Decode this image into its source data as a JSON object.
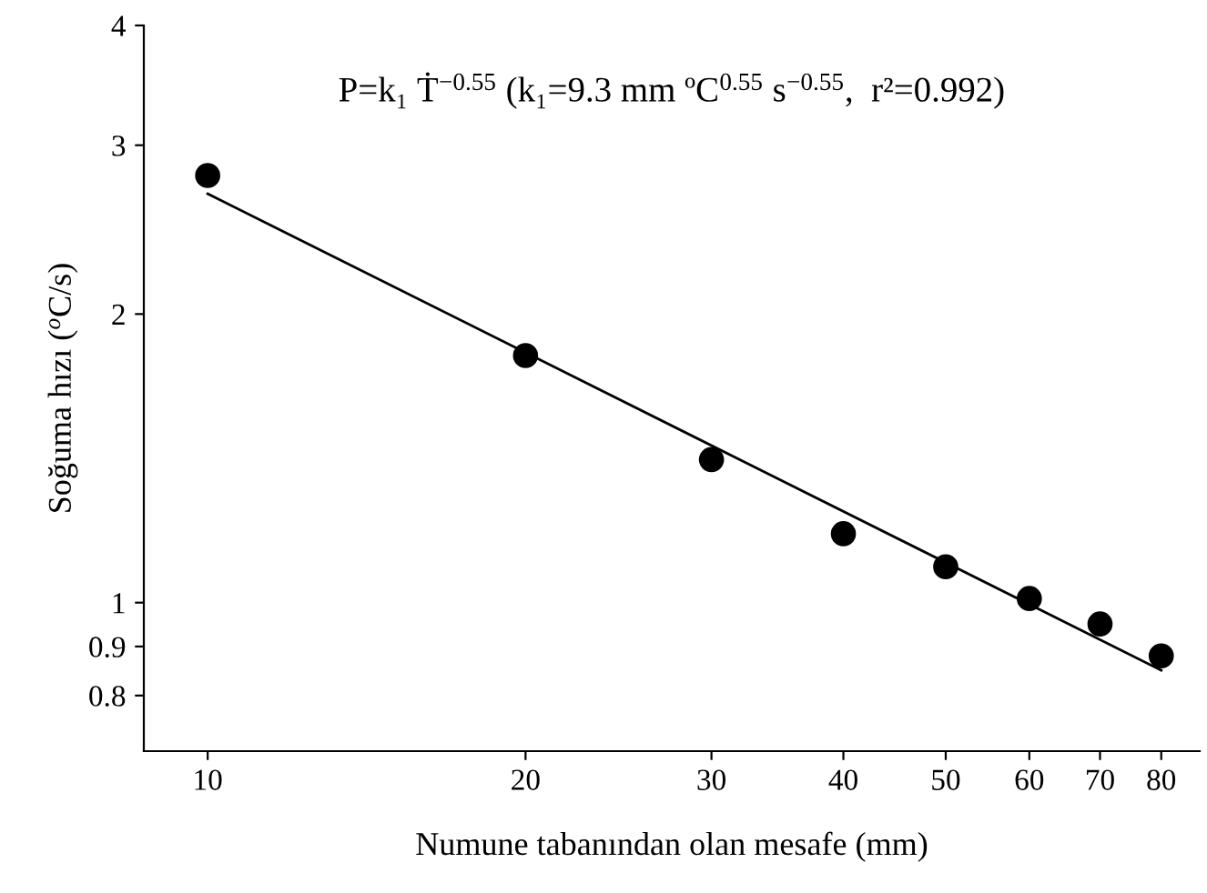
{
  "chart_data": {
    "type": "scatter",
    "xlabel": "Numune tabanından olan mesafe (mm)",
    "ylabel": "Soğuma hızı ($^{o}$C/s)",
    "annotations": [
      "P=k₁ Ṫ$^{−0.55}$ (k₁=9.3 mm ºC$^{0.55}$ s$^{−0.55}$,  r²=0.992)"
    ],
    "series": [
      {
        "color": "#000000",
        "marker": "circle",
        "x": [
          10,
          20,
          30,
          40,
          50,
          60,
          70,
          80
        ],
        "values": [
          2.79,
          1.81,
          1.41,
          1.18,
          1.09,
          1.01,
          0.95,
          0.88
        ]
      },
      {
        "type": "line",
        "color": "#000000",
        "marker": "none",
        "line_style": "solid",
        "x": [
          10,
          80
        ],
        "values": [
          2.67,
          0.85
        ]
      }
    ],
    "log": "xy",
    "xlim": [
      8.7,
      87
    ],
    "ylim": [
      0.7,
      4
    ],
    "xticks": [
      10,
      20,
      30,
      40,
      50,
      60,
      70,
      80
    ],
    "yticks": [
      0.8,
      0.9,
      1,
      2,
      3,
      4
    ],
    "grid": false
  }
}
